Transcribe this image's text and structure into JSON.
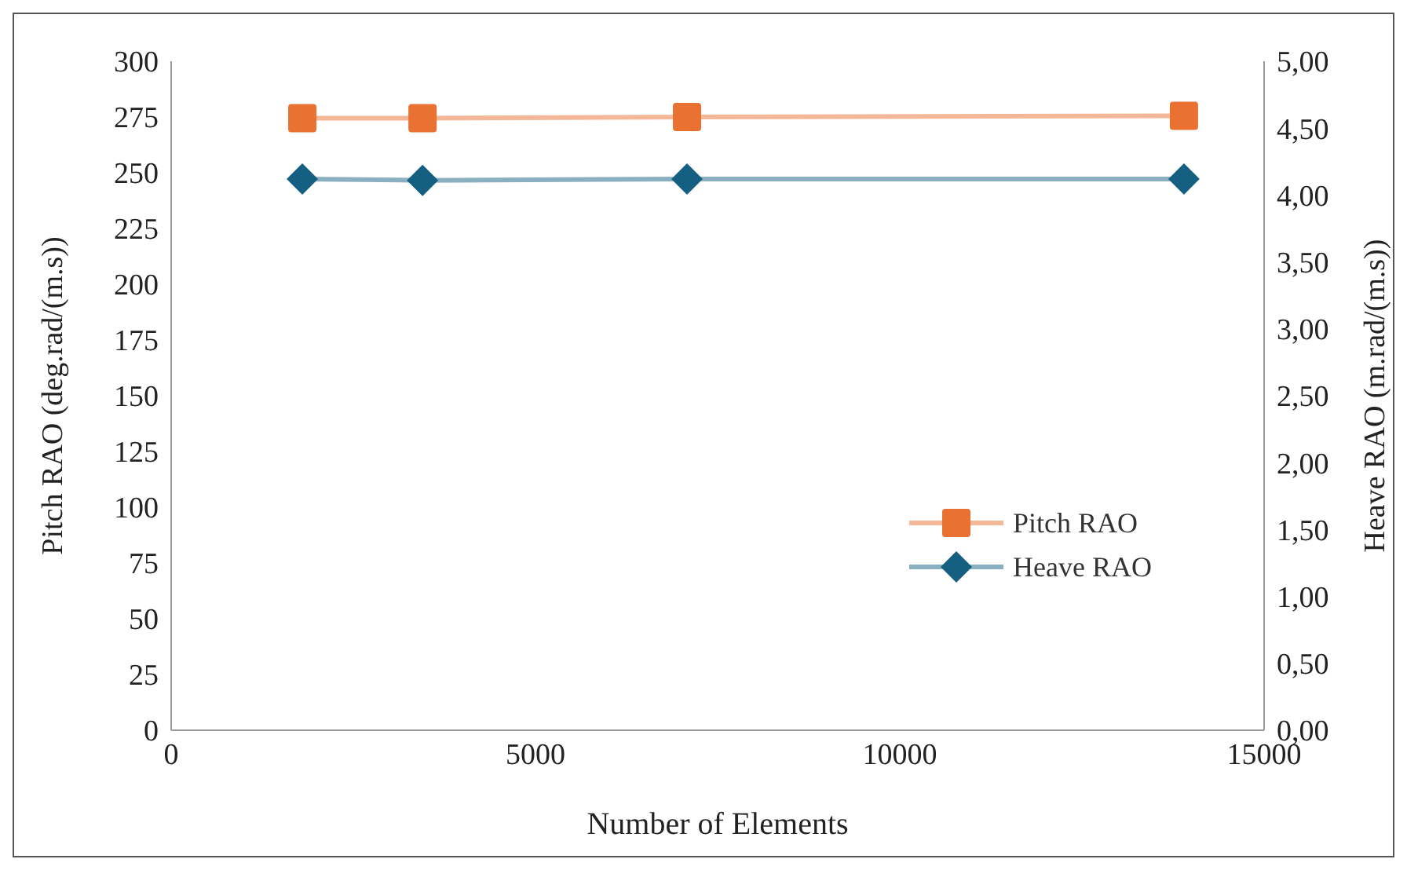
{
  "chart_data": {
    "type": "line",
    "xlabel": "Number of Elements",
    "ylabel": "Pitch RAO (deg.rad/(m.s))",
    "y2label": "Heave RAO (m.rad/(m.s))",
    "x": [
      1800,
      3450,
      7080,
      13900
    ],
    "series": [
      {
        "name": "Pitch RAO",
        "color": "#e97132",
        "values": [
          274.5,
          274.5,
          275,
          275.5
        ],
        "marker": "square"
      },
      {
        "name": "Heave RAO",
        "color": "#156082",
        "values": [
          4.12,
          4.11,
          4.12,
          4.12
        ],
        "marker": "diamond",
        "axis": "y2"
      }
    ],
    "xlim": [
      0,
      15000
    ],
    "xticks": [
      0,
      5000,
      10000,
      15000
    ],
    "ylim": [
      0,
      300
    ],
    "yticks": [
      0,
      25,
      50,
      75,
      100,
      125,
      150,
      175,
      200,
      225,
      250,
      275,
      300
    ],
    "y2lim": [
      0,
      5
    ],
    "y2ticks": [
      {
        "value": 0,
        "label": "0,00"
      },
      {
        "value": 0.5,
        "label": "0,50"
      },
      {
        "value": 1,
        "label": "1,00"
      },
      {
        "value": 1.5,
        "label": "1,50"
      },
      {
        "value": 2,
        "label": "2,00"
      },
      {
        "value": 2.5,
        "label": "2,50"
      },
      {
        "value": 3,
        "label": "3,00"
      },
      {
        "value": 3.5,
        "label": "3,50"
      },
      {
        "value": 4,
        "label": "4,00"
      },
      {
        "value": 4.5,
        "label": "4,50"
      },
      {
        "value": 5,
        "label": "5,00"
      }
    ],
    "legend": "bottom right",
    "line_style": "solid"
  }
}
